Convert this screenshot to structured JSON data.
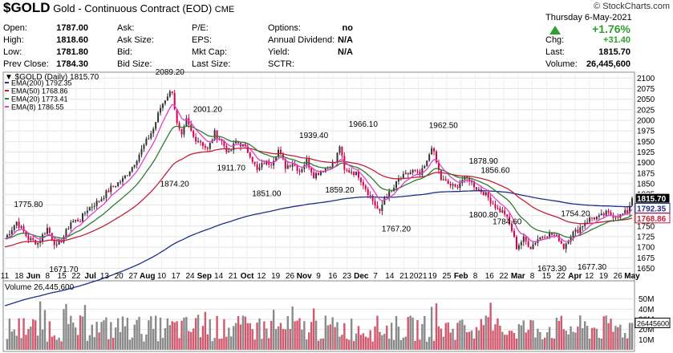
{
  "header": {
    "symbol": "$GOLD",
    "name": "Gold - Continuous Contract (EOD)",
    "exchange": "CME",
    "watermark": "© StockCharts.com",
    "date": "Thursday  6-May-2021",
    "fields": [
      {
        "label": "Open:",
        "value": "1787.00"
      },
      {
        "label": "High:",
        "value": "1818.60"
      },
      {
        "label": "Low:",
        "value": "1781.80"
      },
      {
        "label": "Prev Close:",
        "value": "1784.30"
      },
      {
        "label": "Ask:",
        "value": ""
      },
      {
        "label": "Ask Size:",
        "value": ""
      },
      {
        "label": "Bid:",
        "value": ""
      },
      {
        "label": "Bid Size:",
        "value": ""
      },
      {
        "label": "P/E:",
        "value": ""
      },
      {
        "label": "EPS:",
        "value": ""
      },
      {
        "label": "Mkt Cap:",
        "value": ""
      },
      {
        "label": "Last Size:",
        "value": ""
      },
      {
        "label": "Options:",
        "value": "no"
      },
      {
        "label": "Annual Dividend:",
        "value": "N/A"
      },
      {
        "label": "Yield:",
        "value": "N/A"
      },
      {
        "label": "SCTR:",
        "value": ""
      }
    ],
    "change_pct": "+1.76%",
    "chg_label": "Chg:",
    "chg_value": "+31.40",
    "last_label": "Last:",
    "last_value": "1815.70",
    "volume_label": "Volume:",
    "volume_value": "26,445,600",
    "up_color": "#2f9e2f"
  },
  "legend": {
    "title": "$GOLD (Daily) 1815.70",
    "items": [
      {
        "text": "EMA(200) 1792.35",
        "color": "#1f2e8a"
      },
      {
        "text": "EMA(50) 1768.86",
        "color": "#c0213a"
      },
      {
        "text": "EMA(20) 1773.41",
        "color": "#2e7d32"
      },
      {
        "text": "EMA(8) 1786.55",
        "color": "#e040c8"
      }
    ]
  },
  "chart_data": {
    "type": "line",
    "ylim": [
      1630,
      2110
    ],
    "y_ticks": [
      "1650",
      "1675",
      "1700",
      "1725",
      "1750",
      "1775",
      "1800",
      "1825",
      "1850",
      "1875",
      "1900",
      "1925",
      "1950",
      "1975",
      "2000",
      "2025",
      "2050",
      "2075",
      "2100"
    ],
    "x_ticks": [
      "11",
      "18",
      "Jun",
      "8",
      "15",
      "22",
      "Jul",
      "13",
      "20",
      "27",
      "Aug",
      "10",
      "17",
      "24",
      "Sep",
      "14",
      "21",
      "Oct",
      "12",
      "19",
      "26",
      "Nov",
      "9",
      "16",
      "23",
      "Dec",
      "7",
      "14",
      "21",
      "2021",
      "19",
      "25",
      "Feb",
      "8",
      "16",
      "22",
      "Mar",
      "8",
      "15",
      "22",
      "Apr",
      "12",
      "19",
      "26",
      "May"
    ],
    "annotations": [
      {
        "text": "1775.80",
        "value": 1775.8
      },
      {
        "text": "1671.70",
        "value": 1671.7
      },
      {
        "text": "2089.20",
        "value": 2089.2
      },
      {
        "text": "1874.20",
        "value": 1874.2
      },
      {
        "text": "2001.20",
        "value": 2001.2
      },
      {
        "text": "1911.70",
        "value": 1911.7
      },
      {
        "text": "1851.00",
        "value": 1851.0
      },
      {
        "text": "1939.40",
        "value": 1939.4
      },
      {
        "text": "1859.20",
        "value": 1859.2
      },
      {
        "text": "1966.10",
        "value": 1966.1
      },
      {
        "text": "1767.20",
        "value": 1767.2
      },
      {
        "text": "1962.50",
        "value": 1962.5
      },
      {
        "text": "1878.90",
        "value": 1878.9
      },
      {
        "text": "1856.60",
        "value": 1856.6
      },
      {
        "text": "1800.80",
        "value": 1800.8
      },
      {
        "text": "1784.60",
        "value": 1784.6
      },
      {
        "text": "1673.30",
        "value": 1673.3
      },
      {
        "text": "1754.20",
        "value": 1754.2
      },
      {
        "text": "1677.30",
        "value": 1677.3
      }
    ],
    "price_anchors": [
      [
        0,
        1720
      ],
      [
        5,
        1760
      ],
      [
        10,
        1720
      ],
      [
        14,
        1710
      ],
      [
        18,
        1745
      ],
      [
        22,
        1700
      ],
      [
        25,
        1725
      ],
      [
        28,
        1760
      ],
      [
        32,
        1765
      ],
      [
        35,
        1790
      ],
      [
        40,
        1810
      ],
      [
        45,
        1840
      ],
      [
        50,
        1860
      ],
      [
        54,
        1890
      ],
      [
        57,
        1920
      ],
      [
        60,
        1950
      ],
      [
        63,
        1980
      ],
      [
        66,
        2030
      ],
      [
        69,
        2060
      ],
      [
        71,
        2070
      ],
      [
        73,
        1990
      ],
      [
        75,
        1960
      ],
      [
        77,
        2000
      ],
      [
        80,
        1960
      ],
      [
        83,
        1950
      ],
      [
        86,
        1930
      ],
      [
        89,
        1970
      ],
      [
        92,
        1950
      ],
      [
        95,
        1920
      ],
      [
        98,
        1950
      ],
      [
        101,
        1940
      ],
      [
        104,
        1920
      ],
      [
        107,
        1880
      ],
      [
        110,
        1900
      ],
      [
        113,
        1900
      ],
      [
        116,
        1930
      ],
      [
        119,
        1890
      ],
      [
        122,
        1900
      ],
      [
        125,
        1880
      ],
      [
        128,
        1905
      ],
      [
        131,
        1870
      ],
      [
        134,
        1880
      ],
      [
        137,
        1890
      ],
      [
        140,
        1900
      ],
      [
        142,
        1940
      ],
      [
        144,
        1880
      ],
      [
        147,
        1880
      ],
      [
        150,
        1870
      ],
      [
        153,
        1840
      ],
      [
        156,
        1810
      ],
      [
        159,
        1780
      ],
      [
        161,
        1820
      ],
      [
        164,
        1830
      ],
      [
        167,
        1860
      ],
      [
        170,
        1870
      ],
      [
        173,
        1880
      ],
      [
        176,
        1870
      ],
      [
        179,
        1900
      ],
      [
        181,
        1940
      ],
      [
        183,
        1900
      ],
      [
        185,
        1860
      ],
      [
        188,
        1850
      ],
      [
        191,
        1840
      ],
      [
        194,
        1860
      ],
      [
        197,
        1860
      ],
      [
        200,
        1840
      ],
      [
        203,
        1830
      ],
      [
        206,
        1810
      ],
      [
        209,
        1790
      ],
      [
        212,
        1780
      ],
      [
        215,
        1740
      ],
      [
        217,
        1700
      ],
      [
        220,
        1720
      ],
      [
        223,
        1700
      ],
      [
        226,
        1720
      ],
      [
        229,
        1730
      ],
      [
        232,
        1730
      ],
      [
        235,
        1720
      ],
      [
        237,
        1700
      ],
      [
        240,
        1730
      ],
      [
        243,
        1740
      ],
      [
        246,
        1760
      ],
      [
        249,
        1770
      ],
      [
        252,
        1770
      ],
      [
        255,
        1780
      ],
      [
        258,
        1775
      ],
      [
        261,
        1775
      ],
      [
        264,
        1784
      ],
      [
        266,
        1815.7
      ]
    ],
    "volume_ticks": [
      "50M",
      "40M",
      "30M",
      "20M",
      "10M"
    ],
    "volume_ylim": [
      0,
      60
    ],
    "volume_label": "Volume 26,445,600",
    "volume_last_label": "26445600",
    "volume_last": 26.4456
  }
}
